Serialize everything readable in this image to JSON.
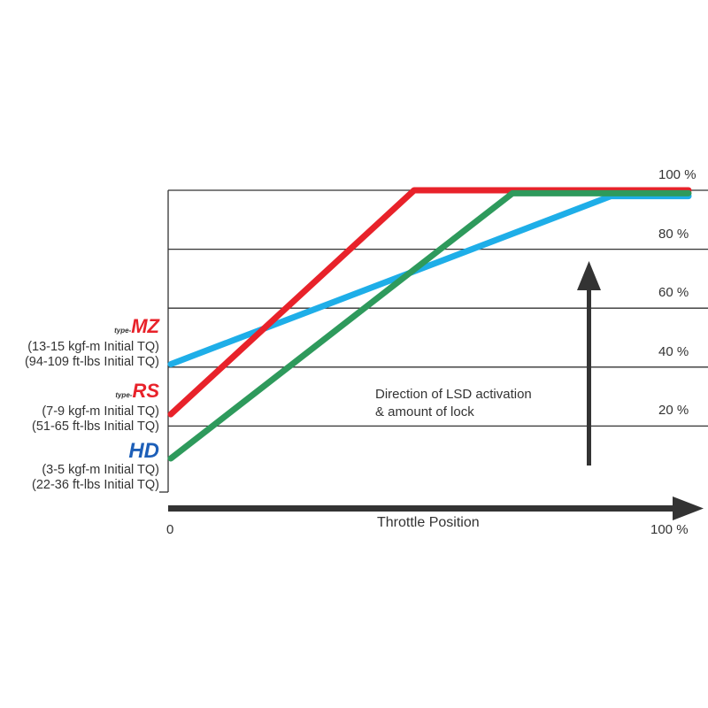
{
  "chart_data": {
    "type": "line",
    "xlabel": "Throttle Position",
    "x_ticks": [
      "0",
      "100 %"
    ],
    "y_ticks": [
      "20 %",
      "40 %",
      "60 %",
      "80 %",
      "100 %"
    ],
    "xlim": [
      0,
      100
    ],
    "ylim": [
      0,
      100
    ],
    "grid": true,
    "annotation": [
      "Direction of LSD activation",
      "& amount of lock"
    ],
    "series": [
      {
        "key": "type-MZ",
        "color": "#1eaee8",
        "points": [
          [
            0,
            41
          ],
          [
            85,
            98
          ],
          [
            100,
            98
          ]
        ]
      },
      {
        "key": "type-RS",
        "color": "#e8222a",
        "points": [
          [
            0,
            24
          ],
          [
            47,
            100
          ],
          [
            100,
            100
          ]
        ]
      },
      {
        "key": "HD",
        "color": "#2e9a5c",
        "points": [
          [
            0,
            9
          ],
          [
            66,
            99
          ],
          [
            100,
            99
          ]
        ]
      }
    ],
    "legend_labels": [
      {
        "logo_prefix": "type-",
        "logo": "MZ",
        "logo_color": "#e8222a",
        "line1": "(13-15 kgf-m Initial TQ)",
        "line2": "(94-109 ft-lbs Initial TQ)"
      },
      {
        "logo_prefix": "type-",
        "logo": "RS",
        "logo_color": "#e8222a",
        "line1": "(7-9 kgf-m Initial TQ)",
        "line2": "(51-65 ft-lbs Initial TQ)"
      },
      {
        "logo_prefix": "",
        "logo": "HD",
        "logo_color": "#1d5fb8",
        "line1": "(3-5 kgf-m Initial TQ)",
        "line2": "(22-36 ft-lbs Initial TQ)"
      }
    ]
  }
}
